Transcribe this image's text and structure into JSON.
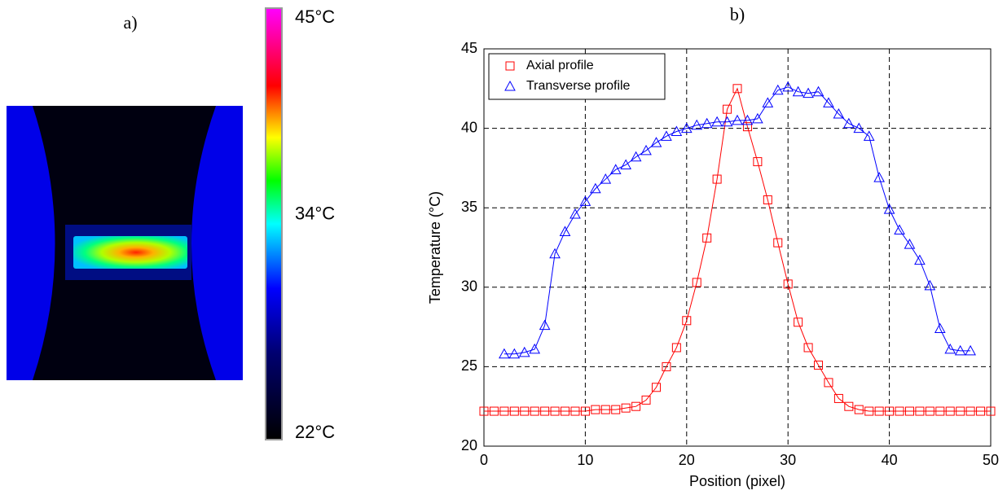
{
  "chart_data": [
    {
      "type": "image",
      "title": "a)",
      "clim": [
        22,
        45
      ],
      "cticks": [
        {
          "value": 45,
          "label": "45°C"
        },
        {
          "value": 34,
          "label": "34°C"
        },
        {
          "value": 22,
          "label": "22°C"
        }
      ]
    },
    {
      "type": "line",
      "title": "b)",
      "xlabel": "Position (pixel)",
      "ylabel": "Temperature (°C)",
      "xlim": [
        0,
        50
      ],
      "ylim": [
        20,
        45
      ],
      "xticks": [
        0,
        10,
        20,
        30,
        40,
        50
      ],
      "yticks": [
        20,
        25,
        30,
        35,
        40,
        45
      ],
      "grid": true,
      "legend": "upper left",
      "series": [
        {
          "name": "Axial profile",
          "color": "#ff0000",
          "marker": "square",
          "x": [
            0,
            1,
            2,
            3,
            4,
            5,
            6,
            7,
            8,
            9,
            10,
            11,
            12,
            13,
            14,
            15,
            16,
            17,
            18,
            19,
            20,
            21,
            22,
            23,
            24,
            25,
            26,
            27,
            28,
            29,
            30,
            31,
            32,
            33,
            34,
            35,
            36,
            37,
            38,
            39,
            40,
            41,
            42,
            43,
            44,
            45,
            46,
            47,
            48,
            49,
            50
          ],
          "values": [
            22.2,
            22.2,
            22.2,
            22.2,
            22.2,
            22.2,
            22.2,
            22.2,
            22.2,
            22.2,
            22.2,
            22.3,
            22.3,
            22.3,
            22.4,
            22.5,
            22.9,
            23.7,
            25.0,
            26.2,
            27.9,
            30.3,
            33.1,
            36.8,
            41.2,
            42.5,
            40.1,
            37.9,
            35.5,
            32.8,
            30.2,
            27.8,
            26.2,
            25.1,
            24.0,
            23.0,
            22.5,
            22.3,
            22.2,
            22.2,
            22.2,
            22.2,
            22.2,
            22.2,
            22.2,
            22.2,
            22.2,
            22.2,
            22.2,
            22.2,
            22.2
          ]
        },
        {
          "name": "Transverse profile",
          "color": "#0000ff",
          "marker": "triangle",
          "x": [
            2,
            3,
            4,
            5,
            6,
            7,
            8,
            9,
            10,
            11,
            12,
            13,
            14,
            15,
            16,
            17,
            18,
            19,
            20,
            21,
            22,
            23,
            24,
            25,
            26,
            27,
            28,
            29,
            30,
            31,
            32,
            33,
            34,
            35,
            36,
            37,
            38,
            39,
            40,
            41,
            42,
            43,
            44,
            45,
            46,
            47,
            48
          ],
          "values": [
            25.8,
            25.8,
            25.9,
            26.1,
            27.6,
            32.1,
            33.5,
            34.6,
            35.4,
            36.2,
            36.8,
            37.4,
            37.7,
            38.2,
            38.6,
            39.1,
            39.5,
            39.8,
            40.0,
            40.2,
            40.3,
            40.4,
            40.4,
            40.5,
            40.5,
            40.6,
            41.6,
            42.4,
            42.6,
            42.3,
            42.2,
            42.3,
            41.6,
            40.9,
            40.3,
            40.0,
            39.5,
            36.9,
            34.9,
            33.6,
            32.7,
            31.7,
            30.1,
            27.4,
            26.1,
            26.0,
            26.0
          ]
        }
      ]
    }
  ]
}
